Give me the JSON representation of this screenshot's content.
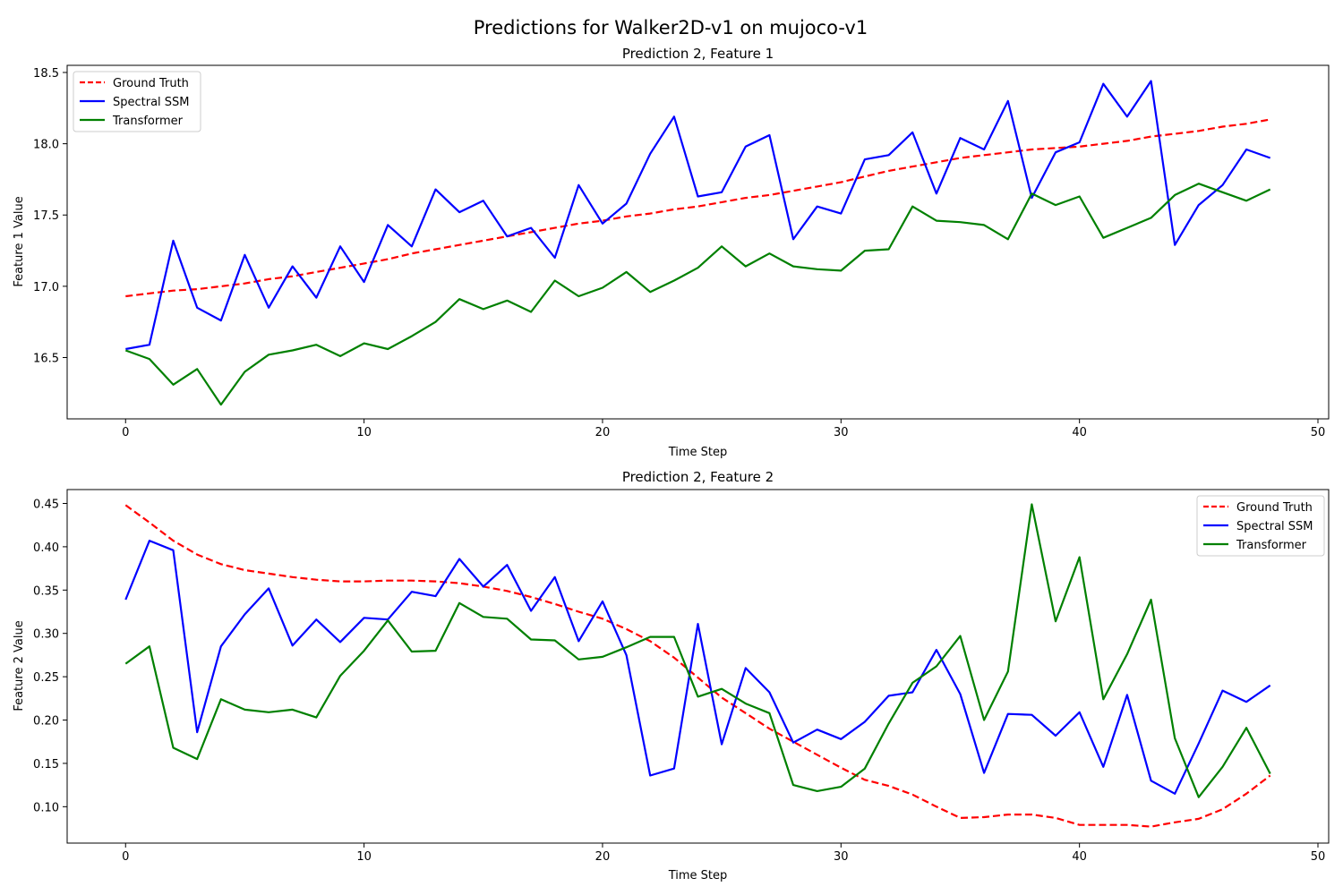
{
  "figure": {
    "suptitle": "Predictions for Walker2D-v1 on mujoco-v1"
  },
  "colors": {
    "ground_truth": "#ff0000",
    "spectral_ssm": "#0000ff",
    "transformer": "#008000",
    "axes": "#000000",
    "background": "#ffffff"
  },
  "chart_data": [
    {
      "type": "line",
      "title": "Prediction 2, Feature 1",
      "xlabel": "Time Step",
      "ylabel": "Feature 1 Value",
      "xlim": [
        -2.45,
        50.45
      ],
      "ylim": [
        16.07,
        18.55
      ],
      "xticks": [
        0,
        10,
        20,
        30,
        40,
        50
      ],
      "yticks": [
        16.5,
        17.0,
        17.5,
        18.0,
        18.5
      ],
      "ytick_labels": [
        "16.5",
        "17.0",
        "17.5",
        "18.0",
        "18.5"
      ],
      "grid": false,
      "legend_position": "upper-left",
      "x": [
        0,
        1,
        2,
        3,
        4,
        5,
        6,
        7,
        8,
        9,
        10,
        11,
        12,
        13,
        14,
        15,
        16,
        17,
        18,
        19,
        20,
        21,
        22,
        23,
        24,
        25,
        26,
        27,
        28,
        29,
        30,
        31,
        32,
        33,
        34,
        35,
        36,
        37,
        38,
        39,
        40,
        41,
        42,
        43,
        44,
        45,
        46,
        47,
        48
      ],
      "series": [
        {
          "name": "Ground Truth",
          "style": "dashed",
          "color_key": "ground_truth",
          "values": [
            16.93,
            16.95,
            16.97,
            16.98,
            17.0,
            17.02,
            17.05,
            17.07,
            17.1,
            17.13,
            17.16,
            17.19,
            17.23,
            17.26,
            17.29,
            17.32,
            17.35,
            17.38,
            17.41,
            17.44,
            17.46,
            17.49,
            17.51,
            17.54,
            17.56,
            17.59,
            17.62,
            17.64,
            17.67,
            17.7,
            17.73,
            17.77,
            17.81,
            17.84,
            17.87,
            17.9,
            17.92,
            17.94,
            17.96,
            17.97,
            17.98,
            18.0,
            18.02,
            18.05,
            18.07,
            18.09,
            18.12,
            18.14,
            18.17
          ]
        },
        {
          "name": "Spectral SSM",
          "style": "solid",
          "color_key": "spectral_ssm",
          "values": [
            16.56,
            16.59,
            17.32,
            16.85,
            16.76,
            17.22,
            16.85,
            17.14,
            16.92,
            17.28,
            17.03,
            17.43,
            17.28,
            17.68,
            17.52,
            17.6,
            17.35,
            17.41,
            17.2,
            17.71,
            17.44,
            17.58,
            17.93,
            18.19,
            17.63,
            17.66,
            17.98,
            18.06,
            17.33,
            17.56,
            17.51,
            17.89,
            17.92,
            18.08,
            17.65,
            18.04,
            17.96,
            18.3,
            17.62,
            17.94,
            18.01,
            18.42,
            18.19,
            18.44,
            17.29,
            17.57,
            17.71,
            17.96,
            17.9
          ]
        },
        {
          "name": "Transformer",
          "style": "solid",
          "color_key": "transformer",
          "values": [
            16.55,
            16.49,
            16.31,
            16.42,
            16.17,
            16.4,
            16.52,
            16.55,
            16.59,
            16.51,
            16.6,
            16.56,
            16.65,
            16.75,
            16.91,
            16.84,
            16.9,
            16.82,
            17.04,
            16.93,
            16.99,
            17.1,
            16.96,
            17.04,
            17.13,
            17.28,
            17.14,
            17.23,
            17.14,
            17.12,
            17.11,
            17.25,
            17.26,
            17.56,
            17.46,
            17.45,
            17.43,
            17.33,
            17.65,
            17.57,
            17.63,
            17.34,
            17.41,
            17.48,
            17.64,
            17.72,
            17.66,
            17.6,
            17.68
          ]
        }
      ]
    },
    {
      "type": "line",
      "title": "Prediction 2, Feature 2",
      "xlabel": "Time Step",
      "ylabel": "Feature 2 Value",
      "xlim": [
        -2.45,
        50.45
      ],
      "ylim": [
        0.058,
        0.466
      ],
      "xticks": [
        0,
        10,
        20,
        30,
        40,
        50
      ],
      "yticks": [
        0.1,
        0.15,
        0.2,
        0.25,
        0.3,
        0.35,
        0.4,
        0.45
      ],
      "ytick_labels": [
        "0.10",
        "0.15",
        "0.20",
        "0.25",
        "0.30",
        "0.35",
        "0.40",
        "0.45"
      ],
      "grid": false,
      "legend_position": "upper-right",
      "x": [
        0,
        1,
        2,
        3,
        4,
        5,
        6,
        7,
        8,
        9,
        10,
        11,
        12,
        13,
        14,
        15,
        16,
        17,
        18,
        19,
        20,
        21,
        22,
        23,
        24,
        25,
        26,
        27,
        28,
        29,
        30,
        31,
        32,
        33,
        34,
        35,
        36,
        37,
        38,
        39,
        40,
        41,
        42,
        43,
        44,
        45,
        46,
        47,
        48
      ],
      "series": [
        {
          "name": "Ground Truth",
          "style": "dashed",
          "color_key": "ground_truth",
          "values": [
            0.448,
            0.428,
            0.407,
            0.391,
            0.38,
            0.373,
            0.369,
            0.365,
            0.362,
            0.36,
            0.36,
            0.361,
            0.361,
            0.36,
            0.358,
            0.354,
            0.349,
            0.342,
            0.334,
            0.325,
            0.317,
            0.305,
            0.291,
            0.272,
            0.249,
            0.226,
            0.208,
            0.19,
            0.175,
            0.16,
            0.145,
            0.131,
            0.124,
            0.114,
            0.1,
            0.087,
            0.088,
            0.091,
            0.091,
            0.087,
            0.079,
            0.079,
            0.079,
            0.077,
            0.082,
            0.086,
            0.097,
            0.115,
            0.136
          ]
        },
        {
          "name": "Spectral SSM",
          "style": "solid",
          "color_key": "spectral_ssm",
          "values": [
            0.339,
            0.407,
            0.396,
            0.186,
            0.285,
            0.322,
            0.352,
            0.286,
            0.316,
            0.29,
            0.318,
            0.316,
            0.348,
            0.343,
            0.386,
            0.354,
            0.379,
            0.326,
            0.365,
            0.291,
            0.337,
            0.275,
            0.136,
            0.144,
            0.311,
            0.172,
            0.26,
            0.232,
            0.174,
            0.189,
            0.178,
            0.198,
            0.228,
            0.232,
            0.281,
            0.23,
            0.139,
            0.207,
            0.206,
            0.182,
            0.209,
            0.146,
            0.229,
            0.13,
            0.115,
            0.173,
            0.234,
            0.221,
            0.24
          ]
        },
        {
          "name": "Transformer",
          "style": "solid",
          "color_key": "transformer",
          "values": [
            0.265,
            0.285,
            0.168,
            0.155,
            0.224,
            0.212,
            0.209,
            0.212,
            0.203,
            0.251,
            0.28,
            0.315,
            0.279,
            0.28,
            0.335,
            0.319,
            0.317,
            0.293,
            0.292,
            0.27,
            0.273,
            0.284,
            0.296,
            0.296,
            0.227,
            0.236,
            0.219,
            0.208,
            0.125,
            0.118,
            0.123,
            0.144,
            0.196,
            0.243,
            0.262,
            0.297,
            0.2,
            0.256,
            0.449,
            0.314,
            0.388,
            0.224,
            0.276,
            0.339,
            0.179,
            0.111,
            0.146,
            0.191,
            0.138
          ]
        }
      ]
    }
  ]
}
